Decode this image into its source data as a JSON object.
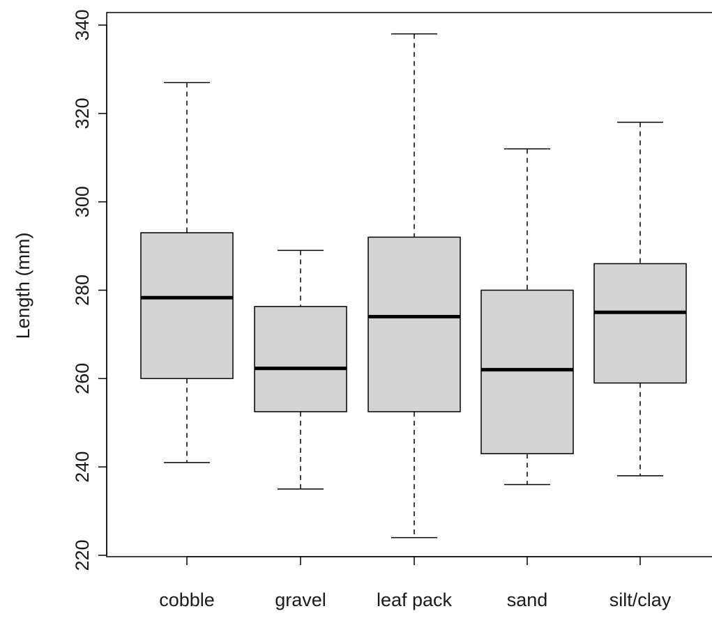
{
  "chart_data": {
    "type": "boxplot",
    "title": "",
    "xlabel": "",
    "ylabel": "Length (mm)",
    "ylim": [
      220,
      340
    ],
    "yticks": [
      220,
      240,
      260,
      280,
      300,
      320,
      340
    ],
    "grid": false,
    "legend": "none",
    "box_fill": "#d3d3d3",
    "line_color": "#000000",
    "categories": [
      "cobble",
      "gravel",
      "leaf pack",
      "sand",
      "silt/clay"
    ],
    "boxes": [
      {
        "label": "cobble",
        "min": 241,
        "q1": 260,
        "median": 278.3,
        "q3": 293,
        "max": 327
      },
      {
        "label": "gravel",
        "min": 235,
        "q1": 252.5,
        "median": 262.3,
        "q3": 276.3,
        "max": 289
      },
      {
        "label": "leaf pack",
        "min": 224,
        "q1": 252.5,
        "median": 274,
        "q3": 292,
        "max": 338
      },
      {
        "label": "sand",
        "min": 236,
        "q1": 243,
        "median": 262,
        "q3": 280,
        "max": 312
      },
      {
        "label": "silt/clay",
        "min": 238,
        "q1": 259,
        "median": 275,
        "q3": 286,
        "max": 318
      }
    ]
  }
}
